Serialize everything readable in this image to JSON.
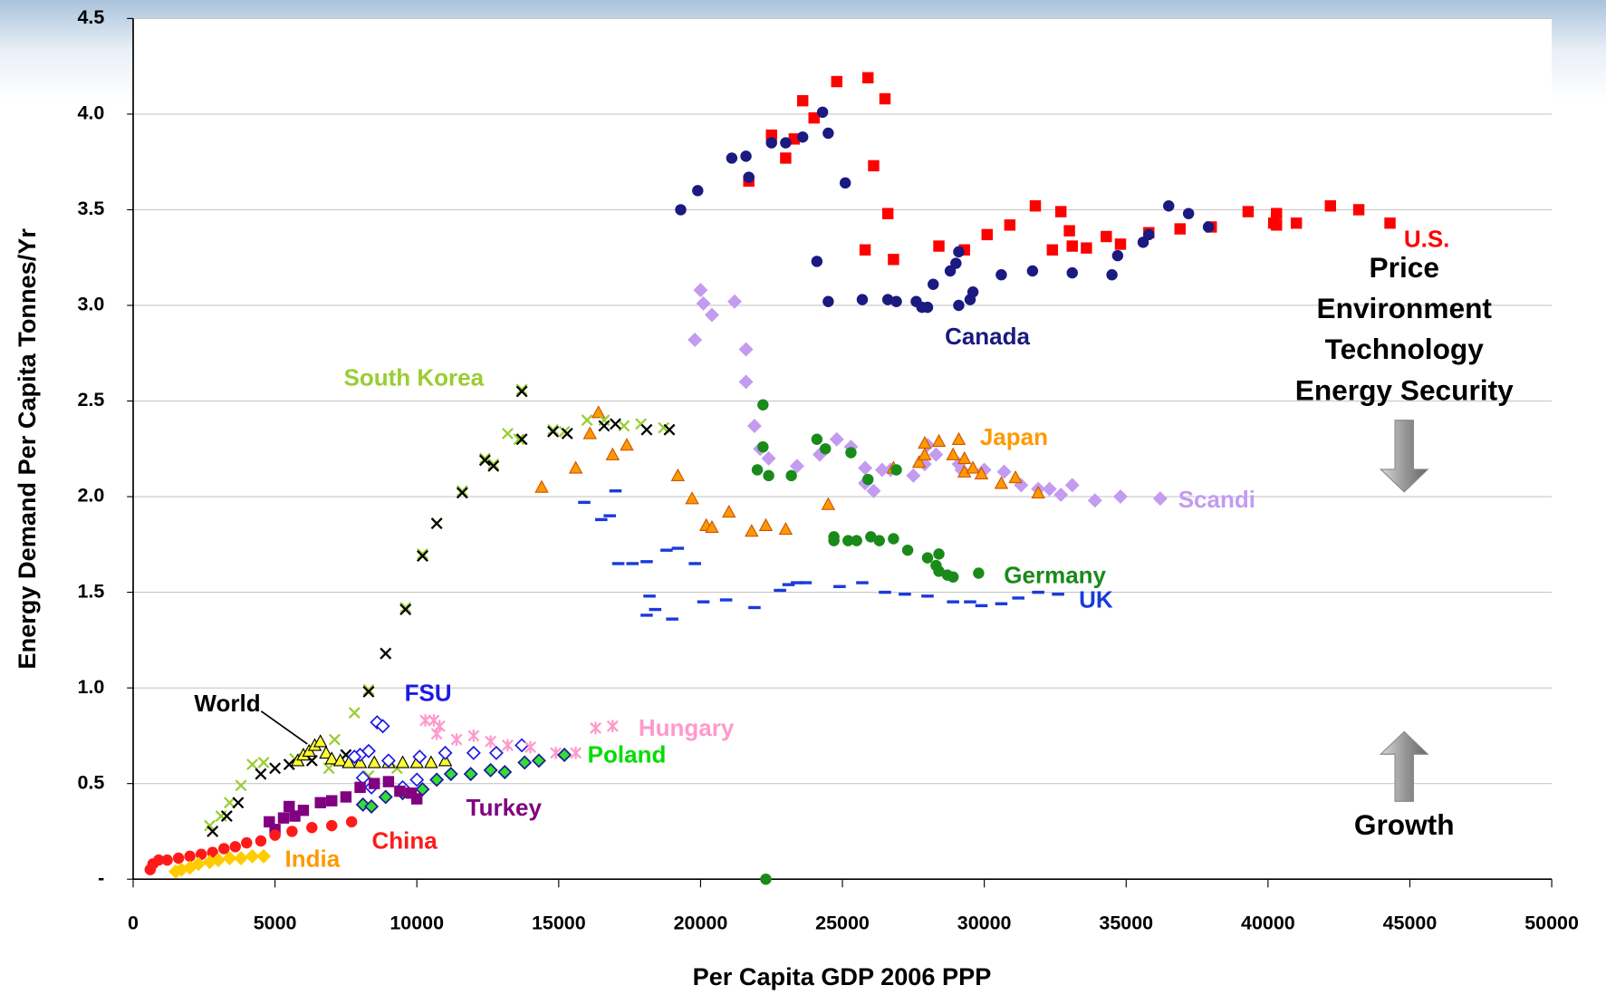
{
  "chart_data": {
    "type": "scatter",
    "xlabel": "Per Capita GDP 2006 PPP",
    "ylabel": "Energy Demand Per Capita Tonnes/Yr",
    "xlim": [
      0,
      50000
    ],
    "ylim": [
      0,
      4.5
    ],
    "xticks": [
      0,
      5000,
      10000,
      15000,
      20000,
      25000,
      30000,
      35000,
      40000,
      45000,
      50000
    ],
    "yticks": [
      {
        "value": 0,
        "label": "-"
      },
      0.5,
      {
        "value": 1,
        "label": "1.0"
      },
      1.5,
      {
        "value": 2,
        "label": "2.0"
      },
      2.5,
      {
        "value": 3,
        "label": "3.0"
      },
      3.5,
      {
        "value": 4,
        "label": "4.0"
      },
      4.5
    ],
    "grid": true,
    "annotations": [
      "Price",
      "Environment",
      "Technology",
      "Energy Security",
      "Growth"
    ],
    "series": [
      {
        "name": "U.S.",
        "color": "#ff0000",
        "marker": "square",
        "x": [
          21700,
          22500,
          23000,
          23300,
          23600,
          24000,
          24800,
          25900,
          26100,
          26500,
          26600,
          25800,
          26800,
          28400,
          29300,
          30100,
          30900,
          31800,
          32400,
          32700,
          33000,
          33100,
          33600,
          34300,
          34800,
          35800,
          36900,
          38000,
          39300,
          40200,
          40300,
          40300,
          41000,
          42200,
          43200,
          44300
        ],
        "y": [
          3.65,
          3.89,
          3.77,
          3.87,
          4.07,
          3.98,
          4.17,
          4.19,
          3.73,
          4.08,
          3.48,
          3.29,
          3.24,
          3.31,
          3.29,
          3.37,
          3.42,
          3.52,
          3.29,
          3.49,
          3.39,
          3.31,
          3.3,
          3.36,
          3.32,
          3.38,
          3.4,
          3.41,
          3.49,
          3.43,
          3.48,
          3.42,
          3.43,
          3.52,
          3.5,
          3.43
        ]
      },
      {
        "name": "Canada",
        "color": "#1a1a80",
        "marker": "circle",
        "x": [
          19300,
          19900,
          21100,
          21600,
          21700,
          22500,
          23000,
          23600,
          24300,
          24500,
          25100,
          24100,
          24500,
          25700,
          26600,
          26900,
          27600,
          27800,
          28000,
          28200,
          28800,
          29000,
          29100,
          29100,
          29500,
          29600,
          30600,
          31700,
          33100,
          34500,
          34700,
          35600,
          35800,
          36500,
          37200,
          37900
        ],
        "y": [
          3.5,
          3.6,
          3.77,
          3.78,
          3.67,
          3.85,
          3.85,
          3.88,
          4.01,
          3.9,
          3.64,
          3.23,
          3.02,
          3.03,
          3.03,
          3.02,
          3.02,
          2.99,
          2.99,
          3.11,
          3.18,
          3.22,
          3.28,
          3.0,
          3.03,
          3.07,
          3.16,
          3.18,
          3.17,
          3.16,
          3.26,
          3.33,
          3.37,
          3.52,
          3.48,
          3.41
        ]
      },
      {
        "name": "Scandi",
        "color": "#c39bf0",
        "marker": "diamond",
        "x": [
          19800,
          20000,
          20100,
          20400,
          21200,
          21600,
          21600,
          21900,
          22100,
          22400,
          23400,
          24200,
          24800,
          25300,
          25800,
          25800,
          26100,
          26400,
          26700,
          27500,
          27900,
          28000,
          28300,
          29100,
          29200,
          30000,
          30700,
          31300,
          31900,
          32300,
          32700,
          33100,
          33900,
          34800,
          36200
        ],
        "y": [
          2.82,
          3.08,
          3.01,
          2.95,
          3.02,
          2.77,
          2.6,
          2.37,
          2.25,
          2.2,
          2.16,
          2.22,
          2.3,
          2.26,
          2.15,
          2.07,
          2.03,
          2.14,
          2.14,
          2.11,
          2.17,
          2.27,
          2.22,
          2.17,
          2.14,
          2.14,
          2.13,
          2.06,
          2.04,
          2.04,
          2.01,
          2.06,
          1.98,
          2.0,
          1.99
        ]
      },
      {
        "name": "Japan",
        "color": "#ff9900",
        "marker": "triangle",
        "edge": "#cc5500",
        "x": [
          14400,
          15600,
          16100,
          16400,
          16900,
          17400,
          19200,
          19700,
          20200,
          20400,
          21000,
          21800,
          22300,
          23000,
          24500,
          26800,
          27700,
          27900,
          27900,
          28400,
          28900,
          29100,
          29300,
          29300,
          29600,
          29900,
          30600,
          31100,
          31900
        ],
        "y": [
          2.05,
          2.15,
          2.33,
          2.44,
          2.22,
          2.27,
          2.11,
          1.99,
          1.85,
          1.84,
          1.92,
          1.82,
          1.85,
          1.83,
          1.96,
          2.15,
          2.18,
          2.22,
          2.28,
          2.29,
          2.22,
          2.3,
          2.13,
          2.2,
          2.15,
          2.12,
          2.07,
          2.1,
          2.02
        ]
      },
      {
        "name": "Germany",
        "color": "#1a8a1a",
        "marker": "circle",
        "x": [
          22000,
          22200,
          22200,
          22400,
          23200,
          24100,
          24400,
          25300,
          25900,
          26900,
          24700,
          24700,
          25200,
          25500,
          26000,
          26300,
          26800,
          27300,
          28000,
          28400,
          28300,
          28400,
          28700,
          28900,
          29800,
          22300
        ],
        "y": [
          2.14,
          2.48,
          2.26,
          2.11,
          2.11,
          2.3,
          2.25,
          2.23,
          2.09,
          2.14,
          1.79,
          1.77,
          1.77,
          1.77,
          1.79,
          1.77,
          1.78,
          1.72,
          1.68,
          1.7,
          1.64,
          1.61,
          1.59,
          1.58,
          1.6,
          0
        ]
      },
      {
        "name": "UK",
        "color": "#1a3adc",
        "marker": "dash",
        "x": [
          15900,
          16500,
          17000,
          16800,
          17100,
          17600,
          18100,
          18800,
          19200,
          19800,
          18400,
          18100,
          18200,
          19000,
          20100,
          20900,
          21900,
          22800,
          23100,
          23400,
          23700,
          24900,
          25700,
          26500,
          27200,
          28000,
          28900,
          29500,
          29900,
          30600,
          31200,
          31900,
          32600
        ],
        "y": [
          1.97,
          1.88,
          2.03,
          1.9,
          1.65,
          1.65,
          1.66,
          1.72,
          1.73,
          1.65,
          1.41,
          1.38,
          1.48,
          1.36,
          1.45,
          1.46,
          1.42,
          1.51,
          1.54,
          1.55,
          1.55,
          1.53,
          1.55,
          1.5,
          1.49,
          1.48,
          1.45,
          1.45,
          1.43,
          1.44,
          1.47,
          1.5,
          1.49
        ]
      },
      {
        "name": "South Korea",
        "color": "#9acd32",
        "marker": "x",
        "x": [
          2700,
          3100,
          3400,
          3800,
          4200,
          4600,
          5700,
          7100,
          7800,
          8300,
          8900,
          9600,
          10200,
          10700,
          11600,
          12400,
          12700,
          13200,
          13600,
          13700,
          14800,
          15200,
          16000,
          16600,
          17300,
          17900,
          18700,
          6900,
          8300,
          9300
        ],
        "y": [
          0.28,
          0.33,
          0.4,
          0.49,
          0.6,
          0.61,
          0.63,
          0.73,
          0.87,
          0.99,
          1.18,
          1.42,
          1.7,
          1.86,
          2.03,
          2.2,
          2.17,
          2.33,
          2.3,
          2.56,
          2.35,
          2.34,
          2.4,
          2.4,
          2.37,
          2.38,
          2.36,
          0.58,
          0.54,
          0.58
        ]
      },
      {
        "color": "#000000",
        "marker": "x",
        "x": [
          2800,
          3300,
          3700,
          4500,
          5000,
          5500,
          6300,
          7500,
          8300,
          8900,
          9600,
          10200,
          10700,
          11600,
          12400,
          12700,
          13700,
          13700,
          14800,
          15300,
          16600,
          17000,
          18100,
          18900
        ],
        "y": [
          0.25,
          0.33,
          0.4,
          0.55,
          0.58,
          0.6,
          0.62,
          0.65,
          0.98,
          1.18,
          1.41,
          1.69,
          1.86,
          2.02,
          2.19,
          2.16,
          2.55,
          2.3,
          2.34,
          2.33,
          2.37,
          2.38,
          2.35,
          2.35
        ]
      },
      {
        "name": "World",
        "color": "#ffff33",
        "marker": "triangle",
        "edge": "#000000",
        "x": [
          5800,
          6000,
          6200,
          6400,
          6600,
          6800,
          7000,
          7300,
          7600,
          8000,
          8500,
          9000,
          9500,
          10000,
          10500,
          11000
        ],
        "y": [
          0.62,
          0.65,
          0.67,
          0.7,
          0.72,
          0.66,
          0.63,
          0.62,
          0.61,
          0.61,
          0.61,
          0.61,
          0.61,
          0.61,
          0.61,
          0.62
        ]
      },
      {
        "name": "FSU",
        "color": "#ffffff",
        "marker": "diamond",
        "edge": "#1a1ae6",
        "x": [
          8300,
          8600,
          8800,
          8000,
          9000,
          10100,
          11000,
          12000,
          12800,
          13700,
          8100,
          8400,
          9500,
          10000,
          7800
        ],
        "y": [
          0.67,
          0.82,
          0.8,
          0.65,
          0.62,
          0.64,
          0.66,
          0.66,
          0.66,
          0.7,
          0.53,
          0.48,
          0.48,
          0.52,
          0.64
        ]
      },
      {
        "name": "Hungary",
        "color": "#ff99cc",
        "marker": "star",
        "x": [
          10300,
          10600,
          10800,
          10700,
          11400,
          12000,
          12600,
          13200,
          14000,
          14900,
          15600,
          16300,
          16900
        ],
        "y": [
          0.83,
          0.83,
          0.8,
          0.76,
          0.73,
          0.75,
          0.72,
          0.7,
          0.69,
          0.66,
          0.66,
          0.79,
          0.8
        ]
      },
      {
        "name": "Poland",
        "color": "#33dd33",
        "marker": "diamond",
        "edge": "#1a1a99",
        "x": [
          8100,
          8400,
          8900,
          9500,
          10200,
          10700,
          11200,
          11900,
          12600,
          13100,
          13800,
          14300,
          15200
        ],
        "y": [
          0.39,
          0.38,
          0.43,
          0.45,
          0.47,
          0.52,
          0.55,
          0.55,
          0.57,
          0.56,
          0.61,
          0.62,
          0.65
        ]
      },
      {
        "name": "Turkey",
        "color": "#800080",
        "marker": "square",
        "x": [
          5000,
          5300,
          5700,
          6000,
          6600,
          7000,
          7500,
          8000,
          8500,
          9000,
          9400,
          9800,
          10000,
          4800,
          5500
        ],
        "y": [
          0.26,
          0.32,
          0.33,
          0.36,
          0.4,
          0.41,
          0.43,
          0.48,
          0.5,
          0.51,
          0.46,
          0.45,
          0.42,
          0.3,
          0.38
        ]
      },
      {
        "name": "China",
        "color": "#ff1a1a",
        "marker": "circle",
        "x": [
          600,
          700,
          900,
          1200,
          1600,
          2000,
          2400,
          2800,
          3200,
          3600,
          4000,
          4500,
          5000,
          5600,
          6300,
          7000,
          7700
        ],
        "y": [
          0.05,
          0.08,
          0.1,
          0.1,
          0.11,
          0.12,
          0.13,
          0.14,
          0.16,
          0.17,
          0.19,
          0.2,
          0.23,
          0.25,
          0.27,
          0.28,
          0.3
        ]
      },
      {
        "name": "India",
        "color": "#ffcc00",
        "marker": "diamond",
        "x": [
          1500,
          1700,
          2000,
          2300,
          2700,
          3000,
          3400,
          3800,
          4200,
          4600
        ],
        "y": [
          0.04,
          0.05,
          0.06,
          0.08,
          0.09,
          0.1,
          0.11,
          0.11,
          0.12,
          0.12
        ]
      }
    ]
  }
}
